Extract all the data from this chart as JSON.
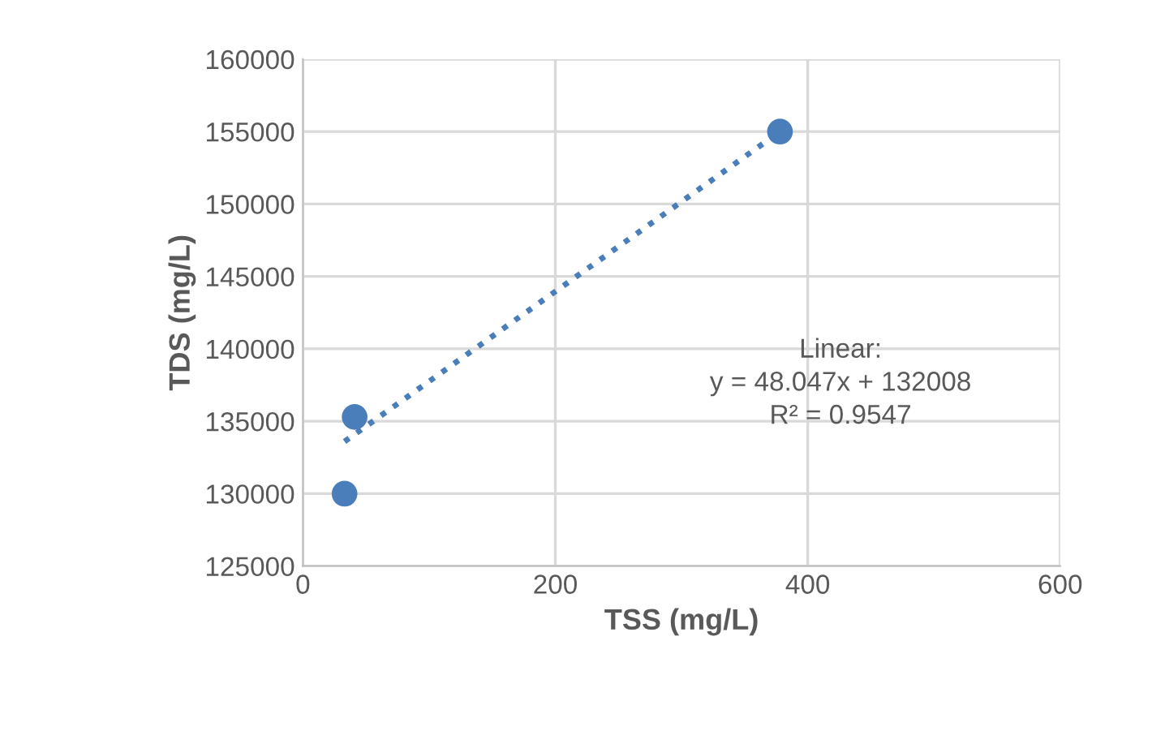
{
  "chart_data": {
    "type": "scatter",
    "xlabel": "TSS (mg/L)",
    "ylabel": "TDS (mg/L)",
    "xlim": [
      0,
      600
    ],
    "xticks": [
      0,
      200,
      400,
      600
    ],
    "ylim": [
      125000,
      160000
    ],
    "yticks": [
      125000,
      130000,
      135000,
      140000,
      145000,
      150000,
      155000,
      160000
    ],
    "grid": true,
    "marker": "circle",
    "series": [
      {
        "color": "#4a7ebb",
        "x": [
          33,
          41,
          378
        ],
        "values": [
          130000,
          135300,
          155000
        ]
      },
      {
        "type": "line",
        "color": "#4a7ebb",
        "line_style": "dotted",
        "marker": "none",
        "x": [
          33,
          378
        ],
        "values": [
          133600,
          155000
        ]
      }
    ],
    "annotations": [
      "Linear:\ny = 48.047x + 132008\nR² = 0.9547"
    ]
  }
}
